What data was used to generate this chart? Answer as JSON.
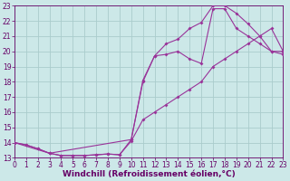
{
  "background_color": "#cce8e8",
  "grid_color": "#aacccc",
  "line_color": "#993399",
  "font_color": "#660066",
  "xlabel": "Windchill (Refroidissement éolien,°C)",
  "xlim": [
    0,
    23
  ],
  "ylim": [
    13,
    23
  ],
  "xticks": [
    0,
    1,
    2,
    3,
    4,
    5,
    6,
    7,
    8,
    9,
    10,
    11,
    12,
    13,
    14,
    15,
    16,
    17,
    18,
    19,
    20,
    21,
    22,
    23
  ],
  "yticks": [
    13,
    14,
    15,
    16,
    17,
    18,
    19,
    20,
    21,
    22,
    23
  ],
  "tick_fontsize": 5.5,
  "xlabel_fontsize": 6.5,
  "markersize": 2.0,
  "line1_x": [
    0,
    1,
    2,
    3,
    4,
    5,
    6,
    7,
    8,
    9,
    10,
    11,
    12,
    13,
    14,
    15,
    16,
    17,
    18,
    19,
    20,
    21,
    22,
    23
  ],
  "line1_y": [
    14,
    13.85,
    13.6,
    13.3,
    13.15,
    13.15,
    13.15,
    13.2,
    13.25,
    13.2,
    14.1,
    15.5,
    16.0,
    16.5,
    17.0,
    17.5,
    18.0,
    19.0,
    19.5,
    20.0,
    20.5,
    21.0,
    21.5,
    20.0
  ],
  "line2_x": [
    0,
    1,
    2,
    3,
    4,
    5,
    6,
    7,
    8,
    9,
    10,
    11,
    12,
    13,
    14,
    15,
    16,
    17,
    18,
    19,
    20,
    21,
    22,
    23
  ],
  "line2_y": [
    14,
    13.85,
    13.6,
    13.3,
    13.15,
    13.15,
    13.15,
    13.2,
    13.25,
    13.2,
    14.2,
    18.1,
    19.7,
    19.8,
    20.0,
    19.5,
    19.2,
    22.8,
    22.8,
    21.5,
    21.0,
    20.5,
    20.0,
    19.8
  ],
  "line3_x": [
    0,
    3,
    10,
    11,
    12,
    13,
    14,
    15,
    16,
    17,
    18,
    19,
    20,
    21,
    22,
    23
  ],
  "line3_y": [
    14,
    13.3,
    14.2,
    18.0,
    19.7,
    20.5,
    20.8,
    21.5,
    21.9,
    23.0,
    23.0,
    22.5,
    21.8,
    21.0,
    20.0,
    20.0
  ]
}
